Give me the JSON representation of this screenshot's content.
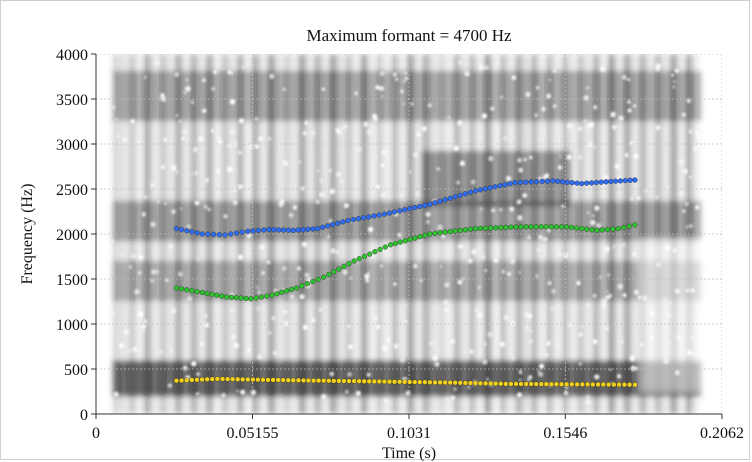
{
  "chart_data": {
    "type": "scatter",
    "title": "Maximum formant = 4700 Hz",
    "xlabel": "Time (s)",
    "ylabel": "Frequency (Hz)",
    "xlim": [
      0,
      0.2062
    ],
    "ylim": [
      0,
      4000
    ],
    "x_ticks": [
      "0",
      "0.05155",
      "0.1031",
      "0.1546",
      "0.2062"
    ],
    "x_tick_values": [
      0,
      0.05155,
      0.1031,
      0.1546,
      0.2062
    ],
    "y_ticks": [
      "0",
      "500",
      "1000",
      "1500",
      "2000",
      "2500",
      "3000",
      "3500",
      "4000"
    ],
    "y_tick_values": [
      0,
      500,
      1000,
      1500,
      2000,
      2500,
      3000,
      3500,
      4000
    ],
    "grid": true,
    "background": "spectrogram",
    "series": [
      {
        "color": "#2f6ef2",
        "x": [
          0.0265,
          0.035,
          0.0425,
          0.05,
          0.057,
          0.065,
          0.073,
          0.083,
          0.095,
          0.11,
          0.125,
          0.138,
          0.1505,
          0.16,
          0.168,
          0.1775
        ],
        "y": [
          2060,
          2000,
          1990,
          2030,
          2050,
          2040,
          2060,
          2150,
          2220,
          2330,
          2480,
          2570,
          2590,
          2560,
          2580,
          2600
        ]
      },
      {
        "color": "#2fc12f",
        "x": [
          0.0265,
          0.035,
          0.043,
          0.051,
          0.058,
          0.066,
          0.075,
          0.085,
          0.097,
          0.11,
          0.125,
          0.14,
          0.155,
          0.165,
          0.172,
          0.1775
        ],
        "y": [
          1400,
          1350,
          1300,
          1280,
          1320,
          1400,
          1520,
          1700,
          1880,
          2000,
          2060,
          2080,
          2080,
          2040,
          2060,
          2100
        ]
      },
      {
        "color": "#f2d21e",
        "x": [
          0.0265,
          0.04,
          0.055,
          0.075,
          0.095,
          0.115,
          0.135,
          0.155,
          0.1775
        ],
        "y": [
          370,
          390,
          380,
          370,
          360,
          350,
          335,
          330,
          325
        ]
      }
    ]
  }
}
